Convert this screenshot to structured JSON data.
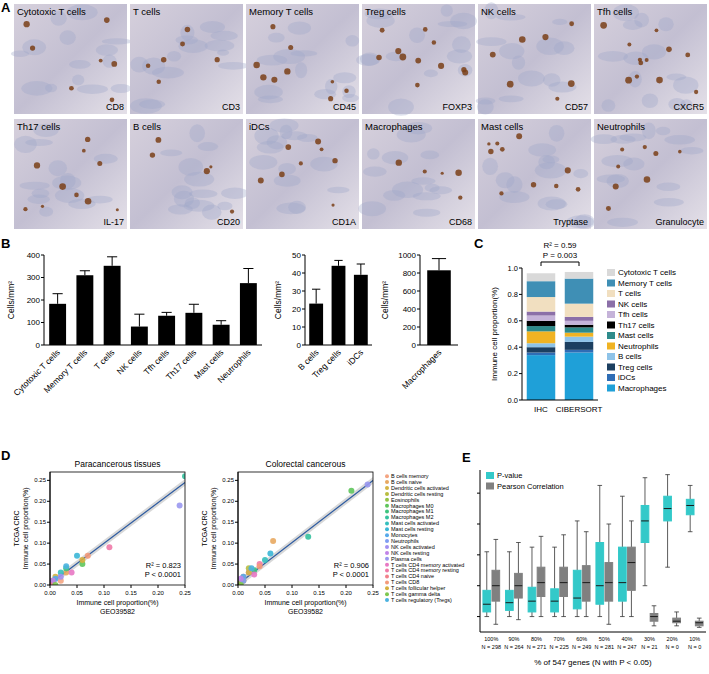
{
  "images": {
    "panel": "A",
    "tiles": [
      {
        "title": "Cytotoxic T cells",
        "stain": "CD8"
      },
      {
        "title": "T cells",
        "stain": "CD3"
      },
      {
        "title": "Memory T cells",
        "stain": "CD45"
      },
      {
        "title": "Treg cells",
        "stain": "FOXP3"
      },
      {
        "title": "NK cells",
        "stain": "CD57"
      },
      {
        "title": "Tfh cells",
        "stain": "CXCR5"
      },
      {
        "title": "Th17 cells",
        "stain": "IL-17"
      },
      {
        "title": "B cells",
        "stain": "CD20"
      },
      {
        "title": "iDCs",
        "stain": "CD1A"
      },
      {
        "title": "Macrophages",
        "stain": "CD68"
      },
      {
        "title": "Mast cells",
        "stain": "Tryptase"
      },
      {
        "title": "Neutrophils",
        "stain": "Granulocyte"
      }
    ]
  },
  "chart_data": [
    {
      "panel": "B",
      "type": "bar",
      "ylabel": "Cells/mm²",
      "categories": [
        "Cytotoxic T cells",
        "Memory T cells",
        "T cells",
        "NK cells",
        "Tfh cells",
        "Th17 cells",
        "Mast cells",
        "Neutrophils"
      ],
      "values": [
        183,
        310,
        352,
        82,
        130,
        143,
        90,
        275
      ],
      "errors": [
        45,
        20,
        40,
        55,
        15,
        38,
        18,
        65
      ],
      "color": "#000000",
      "ylim": [
        0,
        400
      ],
      "yticks": [
        0,
        100,
        200,
        300,
        400
      ]
    },
    {
      "type": "bar",
      "ylabel": "Cells/mm²",
      "categories": [
        "B cells",
        "Treg cells",
        "iDCs"
      ],
      "values": [
        23,
        44,
        39
      ],
      "errors": [
        8,
        3,
        6
      ],
      "color": "#000000",
      "ylim": [
        0,
        50
      ],
      "yticks": [
        0,
        10,
        20,
        30,
        40,
        50
      ]
    },
    {
      "type": "bar",
      "ylabel": "Cells/mm²",
      "categories": [
        "Macrophages"
      ],
      "values": [
        830
      ],
      "errors": [
        130
      ],
      "color": "#000000",
      "ylim": [
        0,
        1000
      ],
      "yticks": [
        0,
        200,
        400,
        600,
        800,
        1000
      ]
    },
    {
      "panel": "C",
      "type": "bar",
      "stacked": true,
      "annotations": [
        "R² = 0.59",
        "P = 0.003"
      ],
      "ylabel": "Immune cell proportion(%)",
      "categories": [
        "IHC",
        "CIBERSORT"
      ],
      "legend": "right",
      "ylim": [
        0,
        1
      ],
      "yticks": [
        {
          "value": 0,
          "label": "0.0"
        },
        0.2,
        0.4,
        0.6,
        0.8,
        {
          "value": 1,
          "label": "1.0"
        }
      ],
      "series": [
        {
          "name": "Macrophages",
          "color": "#1fa0d8",
          "values": [
            0.34,
            0.36
          ]
        },
        {
          "name": "iDCs",
          "color": "#2f6db5",
          "values": [
            0.02,
            0.02
          ]
        },
        {
          "name": "Treg cells",
          "color": "#1c3f60",
          "values": [
            0.04,
            0.06
          ]
        },
        {
          "name": "B cells",
          "color": "#8ec3e8",
          "values": [
            0.03,
            0.04
          ]
        },
        {
          "name": "Neutrophils",
          "color": "#f0b323",
          "values": [
            0.09,
            0.03
          ]
        },
        {
          "name": "Mast cells",
          "color": "#2e8b8b",
          "values": [
            0.04,
            0.04
          ]
        },
        {
          "name": "Th17 cells",
          "color": "#000000",
          "values": [
            0.04,
            0.02
          ]
        },
        {
          "name": "Tfh cells",
          "color": "#c5b3d9",
          "values": [
            0.04,
            0.03
          ]
        },
        {
          "name": "NK cells",
          "color": "#8b6fa8",
          "values": [
            0.03,
            0.03
          ]
        },
        {
          "name": "T cells",
          "color": "#f1dfc0",
          "values": [
            0.11,
            0.1
          ]
        },
        {
          "name": "Memory T cells",
          "color": "#3f8fb5",
          "values": [
            0.12,
            0.19
          ]
        },
        {
          "name": "Cytotoxic T cells",
          "color": "#d9d9d9",
          "values": [
            0.06,
            0.05
          ]
        }
      ]
    },
    {
      "panel": "D",
      "type": "scatter",
      "title": "Paracancerous tissues",
      "xlabel": [
        "Immune cell proportion(%)",
        "GEO39582"
      ],
      "ylabel": [
        "TCGA CRC",
        "Immune cell proportion(%)"
      ],
      "annotations": [
        "R² = 0.823",
        "P < 0.0001"
      ],
      "xlim": [
        0,
        0.25
      ],
      "ylim": [
        0,
        0.27
      ],
      "xticks": [
        {
          "value": 0,
          "label": "0.00"
        },
        0.05,
        {
          "value": 0.1,
          "label": "0.10"
        },
        0.15,
        {
          "value": 0.2,
          "label": "0.20"
        },
        0.25
      ],
      "yticks": [
        {
          "value": 0,
          "label": "0.00"
        },
        0.05,
        {
          "value": 0.1,
          "label": "0.10"
        },
        0.15,
        {
          "value": 0.2,
          "label": "0.20"
        },
        0.25
      ],
      "trend_line": {
        "x": [
          0,
          0.25
        ],
        "values": [
          0.003,
          0.245
        ]
      },
      "series": [
        {
          "color": "#f4a582",
          "x": [
            0.02
          ],
          "values": [
            0.01
          ]
        },
        {
          "color": "#e8a860",
          "x": [
            0.03
          ],
          "values": [
            0.03
          ]
        },
        {
          "color": "#d4b443",
          "x": [
            0.01
          ],
          "values": [
            0.02
          ]
        },
        {
          "color": "#b9bd3f",
          "x": [
            0.005
          ],
          "values": [
            0.01
          ]
        },
        {
          "color": "#93c447",
          "x": [
            0.002
          ],
          "values": [
            0.003
          ]
        },
        {
          "color": "#5fc55c",
          "x": [
            0.06
          ],
          "values": [
            0.05
          ]
        },
        {
          "color": "#3ec47e",
          "x": [
            0.03
          ],
          "values": [
            0.04
          ]
        },
        {
          "color": "#35c19f",
          "x": [
            0.25
          ],
          "values": [
            0.26
          ]
        },
        {
          "color": "#35bfbd",
          "x": [
            0.02
          ],
          "values": [
            0.03
          ]
        },
        {
          "color": "#3bb6d6",
          "x": [
            0.05
          ],
          "values": [
            0.07
          ]
        },
        {
          "color": "#57a9ea",
          "x": [
            0.01
          ],
          "values": [
            0.015
          ]
        },
        {
          "color": "#7e9cf2",
          "x": [
            0.0
          ],
          "values": [
            0.005
          ]
        },
        {
          "color": "#a28ff1",
          "x": [
            0.02
          ],
          "values": [
            0.02
          ]
        },
        {
          "color": "#c183e8",
          "x": [
            0.005
          ],
          "values": [
            0.01
          ]
        },
        {
          "color": "#9a98ef",
          "x": [
            0.24
          ],
          "values": [
            0.19
          ]
        },
        {
          "color": "#e878c4",
          "x": [
            0.04
          ],
          "values": [
            0.03
          ]
        },
        {
          "color": "#f07aa8",
          "x": [
            0.11
          ],
          "values": [
            0.09
          ]
        },
        {
          "color": "#f2818a",
          "x": [
            0.0
          ],
          "values": [
            0.0
          ]
        },
        {
          "color": "#f49a7a",
          "x": [
            0.07
          ],
          "values": [
            0.07
          ]
        },
        {
          "color": "#d6b03e",
          "x": [
            0.06
          ],
          "values": [
            0.06
          ]
        },
        {
          "color": "#7ec850",
          "x": [
            0.01
          ],
          "values": [
            0.0
          ]
        },
        {
          "color": "#4ab2e0",
          "x": [
            0.03
          ],
          "values": [
            0.045
          ]
        }
      ]
    },
    {
      "type": "scatter",
      "title": "Colorectal cancerous",
      "xlabel": [
        "Immune cell proportion(%)",
        "GEO39582"
      ],
      "ylabel": [
        "TCGA CRC",
        "Immune cell proportion(%)"
      ],
      "annotations": [
        "R² = 0.906",
        "P < 0.0001"
      ],
      "legend": "right",
      "xlim": [
        0,
        0.25
      ],
      "ylim": [
        0,
        0.27
      ],
      "xticks": [
        {
          "value": 0,
          "label": "0.00"
        },
        0.05,
        {
          "value": 0.1,
          "label": "0.10"
        },
        0.15,
        {
          "value": 0.2,
          "label": "0.20"
        },
        0.25
      ],
      "yticks": [
        {
          "value": 0,
          "label": "0.00"
        },
        0.05,
        {
          "value": 0.1,
          "label": "0.10"
        },
        0.15,
        {
          "value": 0.2,
          "label": "0.20"
        },
        0.25
      ],
      "trend_line": {
        "x": [
          0,
          0.25
        ],
        "values": [
          0.002,
          0.25
        ]
      },
      "series": [
        {
          "name": "B cells memory",
          "color": "#f4a582",
          "x": [
            0.01
          ],
          "values": [
            0.02
          ]
        },
        {
          "name": "B cells naive",
          "color": "#e8a860",
          "x": [
            0.065
          ],
          "values": [
            0.105
          ]
        },
        {
          "name": "Dendritic cells activated",
          "color": "#d4b443",
          "x": [
            0.01
          ],
          "values": [
            0.01
          ]
        },
        {
          "name": "Dendritic cells resting",
          "color": "#b9bd3f",
          "x": [
            0.02
          ],
          "values": [
            0.04
          ]
        },
        {
          "name": "Eosinophils",
          "color": "#93c447",
          "x": [
            0.005
          ],
          "values": [
            0.005
          ]
        },
        {
          "name": "Macrophages M0",
          "color": "#5fc55c",
          "x": [
            0.21
          ],
          "values": [
            0.225
          ]
        },
        {
          "name": "Macrophages M1",
          "color": "#3ec47e",
          "x": [
            0.03
          ],
          "values": [
            0.035
          ]
        },
        {
          "name": "Macrophages M2",
          "color": "#35c19f",
          "x": [
            0.13
          ],
          "values": [
            0.115
          ]
        },
        {
          "name": "Mast cells activated",
          "color": "#35bfbd",
          "x": [
            0.05
          ],
          "values": [
            0.06
          ]
        },
        {
          "name": "Mast cells resting",
          "color": "#3bb6d6",
          "x": [
            0.06
          ],
          "values": [
            0.075
          ]
        },
        {
          "name": "Monocytes",
          "color": "#57a9ea",
          "x": [
            0.01
          ],
          "values": [
            0.02
          ]
        },
        {
          "name": "Neutrophils",
          "color": "#7e9cf2",
          "x": [
            0.01
          ],
          "values": [
            0.01
          ]
        },
        {
          "name": "NK cells activated",
          "color": "#a28ff1",
          "x": [
            0.02
          ],
          "values": [
            0.03
          ]
        },
        {
          "name": "NK cells resting",
          "color": "#c183e8",
          "x": [
            0.005
          ],
          "values": [
            0.015
          ]
        },
        {
          "name": "Plasma cells",
          "color": "#9a98ef",
          "x": [
            0.24
          ],
          "values": [
            0.24
          ]
        },
        {
          "name": "T cells CD4 memory activated",
          "color": "#e878c4",
          "x": [
            0.03
          ],
          "values": [
            0.025
          ]
        },
        {
          "name": "T cells CD4 memory resting",
          "color": "#f07aa8",
          "x": [
            0.04
          ],
          "values": [
            0.05
          ]
        },
        {
          "name": "T cells CD4 naive",
          "color": "#f2818a",
          "x": [
            0.0
          ],
          "values": [
            0.0
          ]
        },
        {
          "name": "T cells CD8",
          "color": "#f49a7a",
          "x": [
            0.04
          ],
          "values": [
            0.045
          ]
        },
        {
          "name": "T cells follicular helper",
          "color": "#d6b03e",
          "x": [
            0.02
          ],
          "values": [
            0.03
          ]
        },
        {
          "name": "T cells gamma delta",
          "color": "#7ec850",
          "x": [
            0.005
          ],
          "values": [
            0.0
          ]
        },
        {
          "name": "T cells regulatory (Tregs)",
          "color": "#4ab2e0",
          "x": [
            0.025
          ],
          "values": [
            0.04
          ]
        }
      ]
    },
    {
      "panel": "E",
      "type": "box",
      "xlabel": "% of 547 genes (N with P < 0.05)",
      "legend": "upper left",
      "tick_labels": "x",
      "ylim": [
        -0.1,
        0.95
      ],
      "yticks": [
        0,
        0.2,
        0.4,
        0.6,
        0.8
      ],
      "categories": [
        "100%",
        "90%",
        "80%",
        "70%",
        "60%",
        "50%",
        "40%",
        "30%",
        "20%",
        "10%"
      ],
      "n_labels": [
        "N = 298",
        "N = 264",
        "N = 271",
        "N = 225",
        "N = 249",
        "N = 281",
        "N = 247",
        "N = 21",
        "N = 0",
        "N = 0"
      ],
      "series": [
        {
          "name": "P-value",
          "color": "#33c9c9",
          "whisker_low": [
            0,
            0,
            0,
            0,
            0,
            0,
            0,
            0.2,
            0.32,
            0.55
          ],
          "q1": [
            0.03,
            0.04,
            0.03,
            0.03,
            0.05,
            0.08,
            0.1,
            0.48,
            0.62,
            0.66
          ],
          "median": [
            0.08,
            0.09,
            0.1,
            0.1,
            0.12,
            0.2,
            0.22,
            0.62,
            0.7,
            0.72
          ],
          "q3": [
            0.17,
            0.17,
            0.19,
            0.18,
            0.3,
            0.48,
            0.45,
            0.72,
            0.78,
            0.76
          ],
          "whisker_high": [
            0.42,
            0.42,
            0.45,
            0.45,
            0.62,
            0.85,
            0.78,
            0.9,
            0.92,
            0.85
          ]
        },
        {
          "name": "Pearson Correlation",
          "color": "#808080",
          "whisker_low": [
            -0.05,
            -0.02,
            0,
            0,
            0,
            -0.05,
            0,
            -0.06,
            -0.06,
            -0.07
          ],
          "q1": [
            0.1,
            0.12,
            0.13,
            0.13,
            0.1,
            0.1,
            0.17,
            -0.03,
            -0.04,
            -0.06
          ],
          "median": [
            0.2,
            0.2,
            0.22,
            0.22,
            0.22,
            0.22,
            0.35,
            0,
            -0.03,
            -0.04
          ],
          "q3": [
            0.3,
            0.28,
            0.32,
            0.32,
            0.33,
            0.35,
            0.45,
            0.02,
            -0.01,
            -0.03
          ],
          "whisker_high": [
            0.5,
            0.48,
            0.52,
            0.53,
            0.55,
            0.6,
            0.62,
            0.07,
            0.03,
            -0.01
          ]
        }
      ]
    }
  ]
}
